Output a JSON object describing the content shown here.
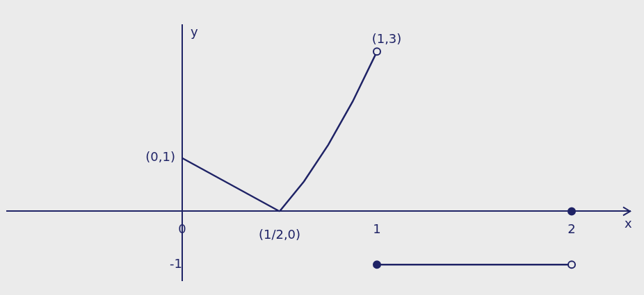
{
  "chart_data": {
    "type": "line",
    "x_label": "x",
    "y_label": "y",
    "xlim": [
      -0.9,
      2.3
    ],
    "ylim": [
      -1.3,
      3.5
    ],
    "xticks": [
      0,
      1,
      2
    ],
    "yticks": [
      -1
    ],
    "grid": false,
    "series": [
      {
        "type": "line",
        "color": "#1f2366",
        "marker": "none",
        "line_style": "solid",
        "x": [
          0,
          0.5
        ],
        "values": [
          1,
          0
        ]
      },
      {
        "type": "line",
        "color": "#1f2366",
        "marker": "none",
        "line_style": "solid",
        "x": [
          0.5,
          0.625,
          0.75,
          0.875,
          1
        ],
        "values": [
          0,
          0.56,
          1.25,
          2.06,
          3
        ]
      },
      {
        "type": "line",
        "color": "#1f2366",
        "marker": "none",
        "line_style": "solid",
        "x": [
          1,
          2
        ],
        "values": [
          -1,
          -1
        ]
      },
      {
        "type": "scatter",
        "color": "#1f2366",
        "marker": "filled_circle",
        "x": [
          1,
          2
        ],
        "values": [
          -1,
          0
        ]
      },
      {
        "type": "scatter",
        "color": "#1f2366",
        "marker": "open_circle",
        "x": [
          1,
          2
        ],
        "values": [
          3,
          -1
        ]
      }
    ],
    "annotations": [
      {
        "text": "(0,1)",
        "x": 0,
        "y": 1
      },
      {
        "text": "(1/2,0)",
        "x": 0.5,
        "y": 0
      },
      {
        "text": "(1,3)",
        "x": 1,
        "y": 3
      }
    ]
  }
}
